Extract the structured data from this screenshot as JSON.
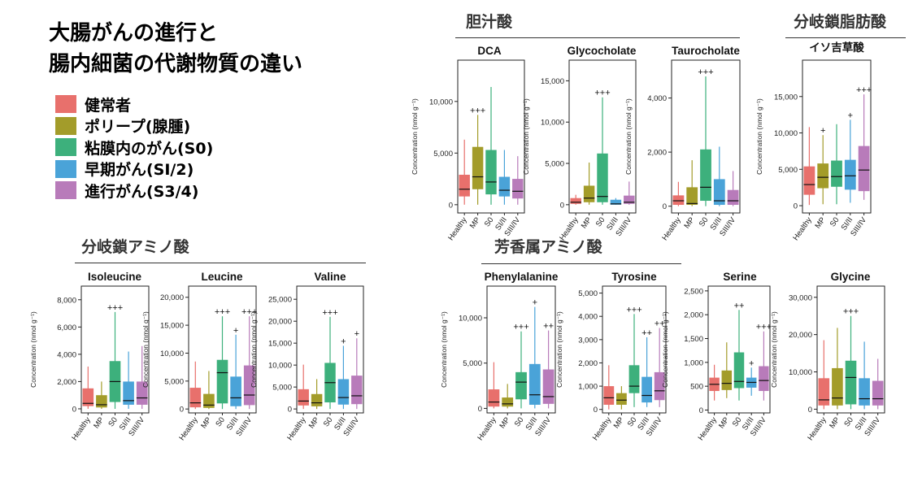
{
  "title_lines": [
    "大腸がんの進行と",
    "腸内細菌の代謝物質の違い"
  ],
  "legend": [
    {
      "label": "健常者",
      "color": "#E8706C"
    },
    {
      "label": "ポリープ(腺腫)",
      "color": "#A39C2A"
    },
    {
      "label": "粘膜内のがん(S0)",
      "color": "#3DB07C"
    },
    {
      "label": "早期がん(SI/2)",
      "color": "#4AA3D8"
    },
    {
      "label": "進行がん(S3/4)",
      "color": "#B87BBA"
    }
  ],
  "groups": [
    {
      "label": "胆汁酸"
    },
    {
      "label": "分岐鎖脂肪酸"
    },
    {
      "label": "分岐鎖アミノ酸"
    },
    {
      "label": "芳香属アミノ酸"
    }
  ],
  "categories": [
    "Healthy",
    "MP",
    "S0",
    "SI/II",
    "SIII/IV"
  ],
  "ylabel": "Concentration (nmol g⁻¹)",
  "chart_data": [
    {
      "type": "box",
      "title": "DCA",
      "ylabel": "Concentration (nmol g⁻¹)",
      "ylim": [
        -800,
        14000
      ],
      "ticks": [
        0,
        5000,
        10000
      ],
      "tick_labels": [
        "0",
        "5,000",
        "10,000"
      ],
      "categories": [
        "Healthy",
        "MP",
        "S0",
        "SI/II",
        "SIII/IV"
      ],
      "boxes": [
        [
          0,
          800,
          1500,
          2900,
          6300
        ],
        [
          0,
          1500,
          2700,
          5600,
          8700
        ],
        [
          0,
          1000,
          2200,
          5300,
          11400
        ],
        [
          0,
          800,
          1400,
          2700,
          5300
        ],
        [
          0,
          600,
          1300,
          2500,
          4700
        ]
      ],
      "sig": [
        "",
        "+++",
        "",
        "",
        ""
      ]
    },
    {
      "type": "box",
      "title": "Glycocholate",
      "ylabel": "Concentration (nmol g⁻¹)",
      "ylim": [
        -1000,
        17500
      ],
      "ticks": [
        0,
        5000,
        10000,
        15000
      ],
      "tick_labels": [
        "0",
        "5,000",
        "10,000",
        "15,000"
      ],
      "categories": [
        "Healthy",
        "MP",
        "S0",
        "SI/II",
        "SIII/IV"
      ],
      "boxes": [
        [
          0,
          100,
          300,
          800,
          1200
        ],
        [
          0,
          300,
          800,
          2300,
          5100
        ],
        [
          0,
          300,
          1000,
          6200,
          13000
        ],
        [
          0,
          0,
          100,
          600,
          800
        ],
        [
          0,
          100,
          300,
          1100,
          2800
        ]
      ],
      "sig": [
        "",
        "",
        "+++",
        "",
        ""
      ]
    },
    {
      "type": "box",
      "title": "Taurocholate",
      "ylabel": "Concentration (nmol g⁻¹)",
      "ylim": [
        -250,
        5400
      ],
      "ticks": [
        0,
        2000,
        4000
      ],
      "tick_labels": [
        "0",
        "2,000",
        "4,000"
      ],
      "categories": [
        "Healthy",
        "MP",
        "S0",
        "SI/II",
        "SIII/IV"
      ],
      "boxes": [
        [
          0,
          50,
          200,
          400,
          900
        ],
        [
          0,
          50,
          100,
          700,
          1700
        ],
        [
          0,
          200,
          700,
          2100,
          4800
        ],
        [
          0,
          50,
          200,
          1000,
          2200
        ],
        [
          0,
          50,
          200,
          600,
          1300
        ]
      ],
      "sig": [
        "",
        "",
        "+++",
        "",
        ""
      ]
    },
    {
      "type": "box",
      "title": "イソ吉草酸",
      "ylabel": "Concentration (nmol g⁻¹)",
      "ylim": [
        -1000,
        20000
      ],
      "ticks": [
        0,
        5000,
        10000,
        15000
      ],
      "tick_labels": [
        "0",
        "5,000",
        "10,000",
        "15,000"
      ],
      "categories": [
        "Healthy",
        "MP",
        "S0",
        "SI/II",
        "SIII/IV"
      ],
      "boxes": [
        [
          100,
          1500,
          2900,
          5400,
          10800
        ],
        [
          200,
          2400,
          3900,
          5800,
          9700
        ],
        [
          200,
          2600,
          4000,
          6200,
          11200
        ],
        [
          400,
          2200,
          4100,
          6300,
          11800
        ],
        [
          800,
          2000,
          4900,
          8200,
          15300
        ]
      ],
      "sig": [
        "",
        "+",
        "",
        "+",
        "+++"
      ]
    },
    {
      "type": "box",
      "title": "Isoleucine",
      "ylabel": "Concentration (nmol g⁻¹)",
      "ylim": [
        -300,
        9000
      ],
      "ticks": [
        0,
        2000,
        4000,
        6000,
        8000
      ],
      "tick_labels": [
        "0",
        "2,000",
        "4,000",
        "6,000",
        "8,000"
      ],
      "categories": [
        "Healthy",
        "MP",
        "S0",
        "SI/II",
        "SIII/IV"
      ],
      "boxes": [
        [
          0,
          200,
          400,
          1500,
          3100
        ],
        [
          0,
          100,
          300,
          1000,
          2000
        ],
        [
          0,
          500,
          2000,
          3500,
          7100
        ],
        [
          0,
          300,
          600,
          2000,
          4200
        ],
        [
          0,
          300,
          800,
          2000,
          4600
        ]
      ],
      "sig": [
        "",
        "",
        "+++",
        "",
        ""
      ]
    },
    {
      "type": "box",
      "title": "Leucine",
      "ylabel": "Concentration (nmol g⁻¹)",
      "ylim": [
        -700,
        22000
      ],
      "ticks": [
        0,
        5000,
        10000,
        15000,
        20000
      ],
      "tick_labels": [
        "0",
        "5,000",
        "10,000",
        "15,000",
        "20,000"
      ],
      "categories": [
        "Healthy",
        "MP",
        "S0",
        "SI/II",
        "SIII/IV"
      ],
      "boxes": [
        [
          0,
          300,
          1100,
          3800,
          8500
        ],
        [
          0,
          200,
          700,
          2700,
          6800
        ],
        [
          0,
          1000,
          6500,
          8800,
          16600
        ],
        [
          0,
          500,
          2000,
          5800,
          13300
        ],
        [
          0,
          700,
          2500,
          7800,
          16600
        ]
      ],
      "sig": [
        "",
        "",
        "+++",
        "+",
        "+++"
      ]
    },
    {
      "type": "box",
      "title": "Valine",
      "ylabel": "Concentration (nmol g⁻¹)",
      "ylim": [
        -900,
        28000
      ],
      "ticks": [
        0,
        5000,
        10000,
        15000,
        20000,
        25000
      ],
      "tick_labels": [
        "0",
        "5,000",
        "10,000",
        "15,000",
        "20,000",
        "25,000"
      ],
      "categories": [
        "Healthy",
        "MP",
        "S0",
        "SI/II",
        "SIII/IV"
      ],
      "boxes": [
        [
          0,
          800,
          1800,
          4500,
          10100
        ],
        [
          0,
          600,
          1400,
          3400,
          6800
        ],
        [
          0,
          1500,
          6000,
          10500,
          21000
        ],
        [
          0,
          1000,
          2600,
          6800,
          14400
        ],
        [
          0,
          1100,
          3000,
          7600,
          16100
        ]
      ],
      "sig": [
        "",
        "",
        "+++",
        "+",
        "+"
      ]
    },
    {
      "type": "box",
      "title": "Phenylalanine",
      "ylabel": "Concentration (nmol g⁻¹)",
      "ylim": [
        -500,
        13500
      ],
      "ticks": [
        0,
        5000,
        10000
      ],
      "tick_labels": [
        "0",
        "5,000",
        "10,000"
      ],
      "categories": [
        "Healthy",
        "MP",
        "S0",
        "SI/II",
        "SIII/IV"
      ],
      "boxes": [
        [
          0,
          200,
          700,
          2100,
          5100
        ],
        [
          0,
          200,
          500,
          1200,
          2700
        ],
        [
          0,
          1000,
          2900,
          4000,
          8500
        ],
        [
          0,
          400,
          1500,
          4900,
          11200
        ],
        [
          0,
          500,
          1300,
          4300,
          8600
        ]
      ],
      "sig": [
        "",
        "",
        "+++",
        "+",
        "++"
      ]
    },
    {
      "type": "box",
      "title": "Tyrosine",
      "ylabel": "Concentration (nmol g⁻¹)",
      "ylim": [
        -150,
        5300
      ],
      "ticks": [
        0,
        1000,
        2000,
        3000,
        4000,
        5000
      ],
      "tick_labels": [
        "0",
        "1,000",
        "2,000",
        "3,000",
        "4,000",
        "5,000"
      ],
      "categories": [
        "Healthy",
        "MP",
        "S0",
        "SI/II",
        "SIII/IV"
      ],
      "boxes": [
        [
          0,
          200,
          500,
          1000,
          1900
        ],
        [
          0,
          200,
          400,
          700,
          1000
        ],
        [
          100,
          700,
          1000,
          1900,
          4100
        ],
        [
          100,
          300,
          600,
          1400,
          3100
        ],
        [
          100,
          400,
          800,
          1600,
          3500
        ]
      ],
      "sig": [
        "",
        "",
        "+++",
        "++",
        "++"
      ]
    },
    {
      "type": "box",
      "title": "Serine",
      "ylabel": "Concentration (nmol g⁻¹)",
      "ylim": [
        -60,
        2600
      ],
      "ticks": [
        0,
        500,
        1000,
        1500,
        2000,
        2500
      ],
      "tick_labels": [
        "0",
        "500",
        "1,000",
        "1,500",
        "2,000",
        "2,500"
      ],
      "categories": [
        "Healthy",
        "MP",
        "S0",
        "SI/II",
        "SIII/IV"
      ],
      "boxes": [
        [
          200,
          400,
          540,
          680,
          950
        ],
        [
          250,
          420,
          560,
          830,
          1420
        ],
        [
          200,
          460,
          600,
          1210,
          2100
        ],
        [
          300,
          470,
          580,
          680,
          890
        ],
        [
          200,
          400,
          620,
          920,
          1650
        ]
      ],
      "sig": [
        "",
        "",
        "++",
        "+",
        "+++"
      ]
    },
    {
      "type": "box",
      "title": "Glycine",
      "ylabel": "Concentration (nmol g⁻¹)",
      "ylim": [
        -1000,
        33000
      ],
      "ticks": [
        0,
        10000,
        20000,
        30000
      ],
      "tick_labels": [
        "0",
        "10,000",
        "20,000",
        "30,000"
      ],
      "categories": [
        "Healthy",
        "MP",
        "S0",
        "SI/II",
        "SIII/IV"
      ],
      "boxes": [
        [
          0,
          1000,
          2500,
          8300,
          18500
        ],
        [
          0,
          1000,
          3000,
          11000,
          21800
        ],
        [
          0,
          1300,
          8500,
          13000,
          25000
        ],
        [
          0,
          1000,
          2800,
          8300,
          18100
        ],
        [
          0,
          1000,
          2800,
          7600,
          13500
        ]
      ],
      "sig": [
        "",
        "",
        "+++",
        "",
        ""
      ]
    }
  ]
}
